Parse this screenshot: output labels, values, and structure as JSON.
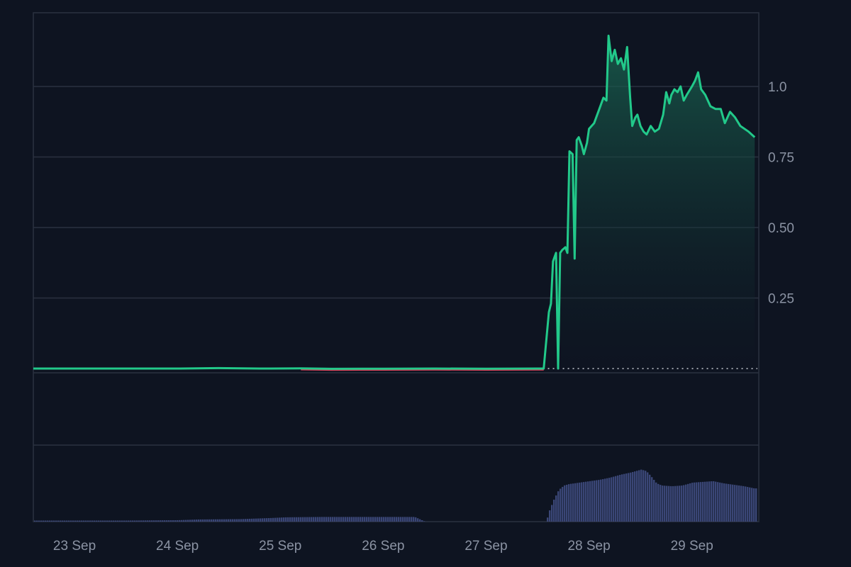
{
  "chart_data": {
    "type": "area",
    "title": "",
    "xlabel": "",
    "ylabel": "",
    "x_ticks": [
      "23 Sep",
      "24 Sep",
      "25 Sep",
      "26 Sep",
      "27 Sep",
      "28 Sep",
      "29 Sep"
    ],
    "x_range_days": [
      22.6,
      29.65
    ],
    "y_ticks": [
      "0.25",
      "0.50",
      "0.75",
      "1.0"
    ],
    "y_tick_values": [
      0.25,
      0.5,
      0.75,
      1.0
    ],
    "ylim": [
      -0.01,
      1.26
    ],
    "baseline_value": 0.0,
    "grid": true,
    "colors": {
      "background": "#0e1421",
      "up_line": "#22c98a",
      "down_line": "#e0415a",
      "grid": "#2a3140",
      "volume": "#3a4676",
      "baseline": "#c8ccd4"
    },
    "series": [
      {
        "points": [
          [
            22.6,
            0.0
          ],
          [
            23.0,
            0.0
          ],
          [
            23.5,
            0.0
          ],
          [
            24.0,
            0.0
          ],
          [
            24.4,
            0.0015
          ],
          [
            24.8,
            0.0
          ],
          [
            25.2,
            0.0005
          ],
          [
            25.5,
            -0.001
          ],
          [
            26.0,
            -0.0005
          ],
          [
            26.5,
            0.0
          ],
          [
            27.0,
            -0.0005
          ],
          [
            27.5,
            0.0
          ],
          [
            27.56,
            0.0
          ],
          [
            27.58,
            0.08
          ],
          [
            27.61,
            0.2
          ],
          [
            27.63,
            0.23
          ],
          [
            27.65,
            0.38
          ],
          [
            27.68,
            0.41
          ],
          [
            27.7,
            0.0
          ],
          [
            27.72,
            0.41
          ],
          [
            27.74,
            0.42
          ],
          [
            27.77,
            0.43
          ],
          [
            27.79,
            0.41
          ],
          [
            27.81,
            0.77
          ],
          [
            27.84,
            0.76
          ],
          [
            27.86,
            0.39
          ],
          [
            27.88,
            0.81
          ],
          [
            27.9,
            0.82
          ],
          [
            27.93,
            0.79
          ],
          [
            27.95,
            0.76
          ],
          [
            27.98,
            0.8
          ],
          [
            28.0,
            0.85
          ],
          [
            28.05,
            0.87
          ],
          [
            28.1,
            0.92
          ],
          [
            28.14,
            0.96
          ],
          [
            28.17,
            0.95
          ],
          [
            28.19,
            1.18
          ],
          [
            28.22,
            1.09
          ],
          [
            28.25,
            1.13
          ],
          [
            28.28,
            1.08
          ],
          [
            28.31,
            1.1
          ],
          [
            28.34,
            1.06
          ],
          [
            28.37,
            1.14
          ],
          [
            28.4,
            0.96
          ],
          [
            28.42,
            0.86
          ],
          [
            28.45,
            0.89
          ],
          [
            28.47,
            0.9
          ],
          [
            28.5,
            0.86
          ],
          [
            28.53,
            0.84
          ],
          [
            28.56,
            0.83
          ],
          [
            28.6,
            0.86
          ],
          [
            28.64,
            0.84
          ],
          [
            28.68,
            0.85
          ],
          [
            28.72,
            0.9
          ],
          [
            28.75,
            0.98
          ],
          [
            28.78,
            0.94
          ],
          [
            28.8,
            0.97
          ],
          [
            28.83,
            0.99
          ],
          [
            28.86,
            0.98
          ],
          [
            28.89,
            1.0
          ],
          [
            28.92,
            0.95
          ],
          [
            28.95,
            0.97
          ],
          [
            29.0,
            1.0
          ],
          [
            29.03,
            1.02
          ],
          [
            29.06,
            1.05
          ],
          [
            29.09,
            0.99
          ],
          [
            29.13,
            0.97
          ],
          [
            29.18,
            0.93
          ],
          [
            29.23,
            0.92
          ],
          [
            29.28,
            0.92
          ],
          [
            29.32,
            0.87
          ],
          [
            29.37,
            0.91
          ],
          [
            29.42,
            0.89
          ],
          [
            29.47,
            0.86
          ],
          [
            29.55,
            0.84
          ],
          [
            29.61,
            0.82
          ]
        ]
      }
    ],
    "volume": [
      [
        22.6,
        0.015
      ],
      [
        23.5,
        0.015
      ],
      [
        24.0,
        0.02
      ],
      [
        24.2,
        0.03
      ],
      [
        24.6,
        0.035
      ],
      [
        24.9,
        0.05
      ],
      [
        25.05,
        0.06
      ],
      [
        25.4,
        0.065
      ],
      [
        26.0,
        0.065
      ],
      [
        26.3,
        0.065
      ],
      [
        26.4,
        0.0
      ],
      [
        27.58,
        0.0
      ],
      [
        27.6,
        0.12
      ],
      [
        27.65,
        0.3
      ],
      [
        27.7,
        0.44
      ],
      [
        27.75,
        0.5
      ],
      [
        27.8,
        0.52
      ],
      [
        27.9,
        0.54
      ],
      [
        28.0,
        0.56
      ],
      [
        28.1,
        0.58
      ],
      [
        28.2,
        0.61
      ],
      [
        28.3,
        0.65
      ],
      [
        28.4,
        0.68
      ],
      [
        28.5,
        0.72
      ],
      [
        28.55,
        0.7
      ],
      [
        28.6,
        0.62
      ],
      [
        28.65,
        0.53
      ],
      [
        28.7,
        0.5
      ],
      [
        28.8,
        0.49
      ],
      [
        28.9,
        0.5
      ],
      [
        29.0,
        0.54
      ],
      [
        29.1,
        0.55
      ],
      [
        29.2,
        0.56
      ],
      [
        29.3,
        0.53
      ],
      [
        29.4,
        0.51
      ],
      [
        29.5,
        0.49
      ],
      [
        29.6,
        0.46
      ],
      [
        29.62,
        0.46
      ]
    ]
  }
}
